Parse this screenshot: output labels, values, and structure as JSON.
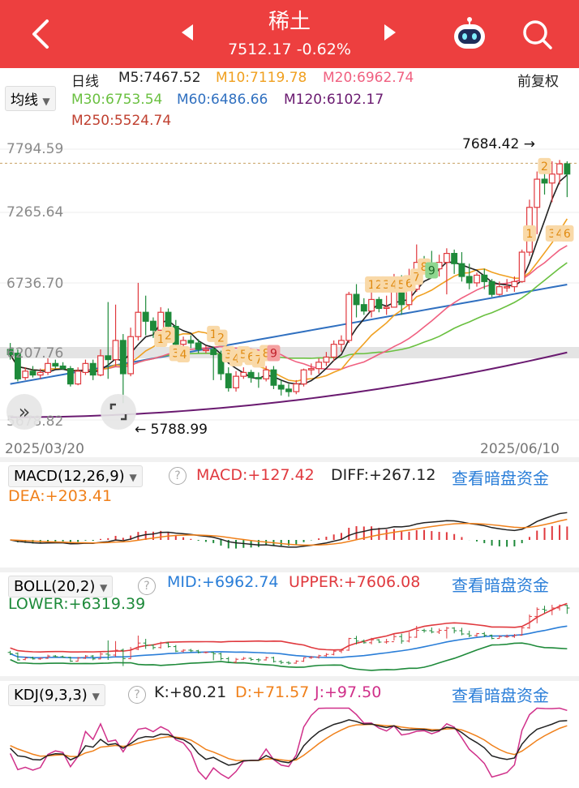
{
  "header": {
    "title": "稀土",
    "price": "7512.17",
    "change": "-0.62%"
  },
  "toolbar": {
    "ma_selector": "均线",
    "period": "日线",
    "adjust": "前复权"
  },
  "ma_values": [
    {
      "label": "M5:7467.52",
      "color": "#222222"
    },
    {
      "label": "M10:7119.78",
      "color": "#f0a020"
    },
    {
      "label": "M20:6962.74",
      "color": "#f06080"
    },
    {
      "label": "M30:6753.54",
      "color": "#6ac040"
    },
    {
      "label": "M60:6486.66",
      "color": "#3070c0"
    },
    {
      "label": "M120:6102.17",
      "color": "#6a1a70"
    },
    {
      "label": "M250:5524.74",
      "color": "#c04030"
    }
  ],
  "price_axis": [
    "7794.59",
    "7265.64",
    "6736.70",
    "6207.76",
    "5678.82"
  ],
  "date_axis": {
    "start": "2025/03/20",
    "end": "2025/06/10"
  },
  "chart_annotations": {
    "high": "7684.42",
    "low": "5788.99"
  },
  "chart_data": {
    "type": "candlestick",
    "ylim": [
      5678.82,
      7794.59
    ],
    "candles": [
      [
        6230,
        6190,
        6280,
        6150
      ],
      [
        6200,
        6000,
        6230,
        5980
      ],
      [
        6010,
        6060,
        6090,
        5990
      ],
      [
        6060,
        6030,
        6100,
        6010
      ],
      [
        6030,
        6050,
        6080,
        6000
      ],
      [
        6050,
        6120,
        6160,
        6030
      ],
      [
        6120,
        6100,
        6150,
        6080
      ],
      [
        6100,
        6080,
        6130,
        6070
      ],
      [
        6080,
        5960,
        6100,
        5940
      ],
      [
        5960,
        6060,
        6090,
        5950
      ],
      [
        6050,
        6120,
        6150,
        6030
      ],
      [
        6120,
        6030,
        6150,
        5990
      ],
      [
        6030,
        6180,
        6230,
        6020
      ],
      [
        6180,
        6150,
        6600,
        6000
      ],
      [
        6150,
        6300,
        6580,
        6100
      ],
      [
        6300,
        6040,
        6350,
        5810
      ],
      [
        6040,
        6330,
        6400,
        6020
      ],
      [
        6330,
        6520,
        6750,
        6300
      ],
      [
        6520,
        6450,
        6650,
        6340
      ],
      [
        6450,
        6380,
        6480,
        6320
      ],
      [
        6380,
        6520,
        6560,
        6350
      ],
      [
        6520,
        6410,
        6550,
        6380
      ],
      [
        6410,
        6270,
        6460,
        6240
      ],
      [
        6270,
        6300,
        6330,
        6230
      ],
      [
        6300,
        6280,
        6340,
        6240
      ],
      [
        6280,
        6230,
        6310,
        6200
      ],
      [
        6230,
        6230,
        6260,
        6200
      ],
      [
        6230,
        6190,
        6250,
        5990
      ],
      [
        6190,
        6040,
        6220,
        5990
      ],
      [
        6040,
        5930,
        6090,
        5900
      ],
      [
        5930,
        6020,
        6060,
        5900
      ],
      [
        6020,
        6050,
        6090,
        6000
      ],
      [
        6050,
        6010,
        6070,
        5970
      ],
      [
        6010,
        6000,
        6050,
        5930
      ],
      [
        6000,
        6070,
        6100,
        5980
      ],
      [
        6070,
        5950,
        6100,
        5920
      ],
      [
        5950,
        5920,
        5990,
        5870
      ],
      [
        5920,
        5900,
        5960,
        5860
      ],
      [
        5900,
        5960,
        5990,
        5880
      ],
      [
        5960,
        6070,
        6080,
        5940
      ],
      [
        6070,
        6080,
        6120,
        6030
      ],
      [
        6080,
        6130,
        6160,
        6040
      ],
      [
        6130,
        6170,
        6210,
        6100
      ],
      [
        6170,
        6270,
        6300,
        6140
      ],
      [
        6270,
        6300,
        6340,
        6210
      ],
      [
        6300,
        6660,
        6680,
        6280
      ],
      [
        6660,
        6580,
        6740,
        6480
      ],
      [
        6580,
        6530,
        6630,
        6500
      ],
      [
        6530,
        6620,
        6680,
        6480
      ],
      [
        6620,
        6550,
        6640,
        6520
      ],
      [
        6550,
        6560,
        6650,
        6500
      ],
      [
        6560,
        6720,
        6820,
        6600
      ],
      [
        6720,
        6580,
        6810,
        6500
      ],
      [
        6580,
        6700,
        6860,
        6540
      ],
      [
        6700,
        6910,
        7050,
        6680
      ],
      [
        6910,
        6900,
        6960,
        6840
      ],
      [
        6900,
        6860,
        7000,
        6820
      ],
      [
        6860,
        6910,
        6970,
        6800
      ],
      [
        6910,
        6980,
        7020,
        6660
      ],
      [
        6980,
        6900,
        7010,
        6820
      ],
      [
        6900,
        6800,
        6990,
        6760
      ],
      [
        6800,
        6750,
        6900,
        6700
      ],
      [
        6750,
        6810,
        6830,
        6720
      ],
      [
        6810,
        6760,
        6860,
        6700
      ],
      [
        6760,
        6660,
        6780,
        6640
      ],
      [
        6660,
        6720,
        6760,
        6650
      ],
      [
        6720,
        6720,
        6780,
        6680
      ],
      [
        6720,
        6760,
        6800,
        6680
      ],
      [
        6760,
        6990,
        7010,
        6750
      ],
      [
        6990,
        7340,
        7400,
        6960
      ],
      [
        7340,
        7560,
        7620,
        7130
      ],
      [
        7560,
        7530,
        7670,
        7440
      ],
      [
        7530,
        7600,
        7700,
        7380
      ],
      [
        7600,
        7680,
        7710,
        7520
      ],
      [
        7680,
        7600,
        7700,
        7420
      ]
    ]
  },
  "macd": {
    "label": "MACD(12,26,9)",
    "macd": "MACD:+127.42",
    "diff": "DIFF:+267.12",
    "dea": "DEA:+203.41",
    "link": "查看暗盘资金"
  },
  "boll": {
    "label": "BOLL(20,2)",
    "mid": "MID:+6962.74",
    "upper": "UPPER:+7606.08",
    "lower": "LOWER:+6319.39",
    "link": "查看暗盘资金"
  },
  "kdj": {
    "label": "KDJ(9,3,3)",
    "k": "K:+80.21",
    "d": "D:+71.57",
    "j": "J:+97.50",
    "link": "查看暗盘资金"
  },
  "signals": {
    "buy_steps": [
      "1",
      "2",
      "3",
      "4",
      "5",
      "6",
      "7",
      "8",
      "9",
      "1",
      "2",
      "3",
      "4",
      "5",
      "6",
      "7",
      "8",
      "9",
      "1",
      "2",
      "3",
      "4",
      "5",
      "6"
    ],
    "sell_steps": [
      "9",
      "8",
      "6",
      "5",
      "4",
      "3",
      "2",
      "1",
      "9",
      "8",
      "7",
      "6",
      "5",
      "4",
      "3",
      "2",
      "1",
      "2",
      "3",
      "4",
      "5",
      "6"
    ]
  },
  "colors": {
    "up": "#e0393e",
    "down": "#1e8a3a",
    "accent": "#ed3f3f",
    "link": "#2a7ed8"
  }
}
